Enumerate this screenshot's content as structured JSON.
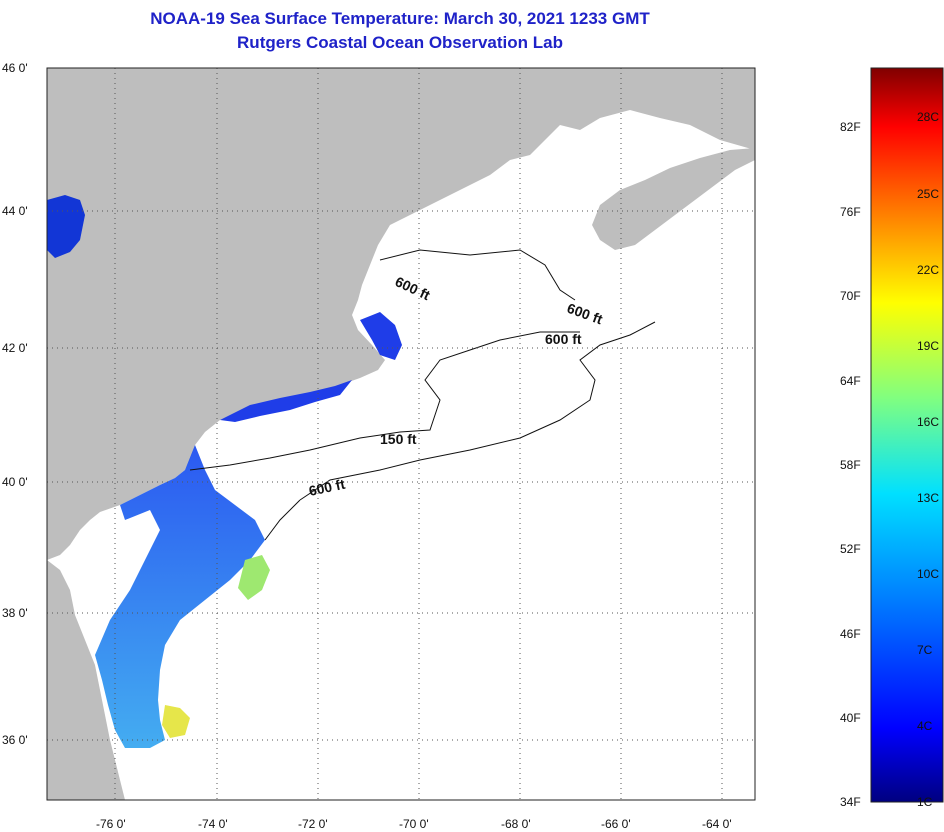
{
  "title_line1": "NOAA-19 Sea Surface Temperature:  March 30, 2021 1233 GMT",
  "title_line2": "Rutgers Coastal Ocean Observation Lab",
  "map": {
    "lat_labels": [
      "46 0'",
      "44 0'",
      "42 0'",
      "40 0'",
      "38 0'",
      "36 0'"
    ],
    "lon_labels": [
      "-76 0'",
      "-74 0'",
      "-72 0'",
      "-70 0'",
      "-68 0'",
      "-66 0'",
      "-64 0'"
    ],
    "contour_labels": [
      "600 ft",
      "600 ft",
      "600 ft",
      "150 ft",
      "600 ft"
    ]
  },
  "colorbar": {
    "fahrenheit": [
      "82F",
      "76F",
      "70F",
      "64F",
      "58F",
      "52F",
      "46F",
      "40F",
      "34F"
    ],
    "celsius": [
      "28C",
      "25C",
      "22C",
      "19C",
      "16C",
      "13C",
      "10C",
      "7C",
      "4C",
      "1C"
    ],
    "colors": [
      "#000080",
      "#0000ff",
      "#0080ff",
      "#00ffff",
      "#80ff80",
      "#ffff00",
      "#ff8000",
      "#ff0000",
      "#800000"
    ]
  }
}
